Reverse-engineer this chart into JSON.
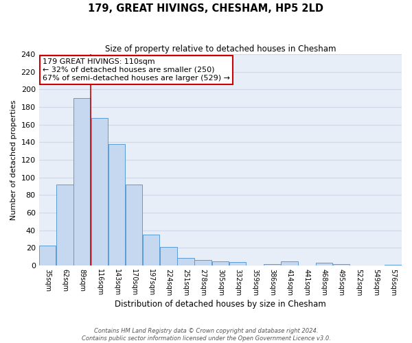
{
  "title": "179, GREAT HIVINGS, CHESHAM, HP5 2LD",
  "subtitle": "Size of property relative to detached houses in Chesham",
  "xlabel": "Distribution of detached houses by size in Chesham",
  "ylabel": "Number of detached properties",
  "bar_labels": [
    "35sqm",
    "62sqm",
    "89sqm",
    "116sqm",
    "143sqm",
    "170sqm",
    "197sqm",
    "224sqm",
    "251sqm",
    "278sqm",
    "305sqm",
    "332sqm",
    "359sqm",
    "386sqm",
    "414sqm",
    "441sqm",
    "468sqm",
    "495sqm",
    "522sqm",
    "549sqm",
    "576sqm"
  ],
  "bar_values": [
    23,
    92,
    190,
    168,
    138,
    92,
    35,
    21,
    9,
    6,
    5,
    4,
    0,
    2,
    5,
    0,
    3,
    2,
    0,
    0,
    1
  ],
  "bar_color": "#c5d8f0",
  "bar_edge_color": "#5b9bd5",
  "vline_x_index": 2,
  "vline_color": "#cc0000",
  "annotation_text": "179 GREAT HIVINGS: 110sqm\n← 32% of detached houses are smaller (250)\n67% of semi-detached houses are larger (529) →",
  "annotation_box_color": "#ffffff",
  "annotation_box_edge": "#cc0000",
  "ylim": [
    0,
    240
  ],
  "yticks": [
    0,
    20,
    40,
    60,
    80,
    100,
    120,
    140,
    160,
    180,
    200,
    220,
    240
  ],
  "background_color": "#e8eef8",
  "grid_color": "#d0d8e8",
  "footer_line1": "Contains HM Land Registry data © Crown copyright and database right 2024.",
  "footer_line2": "Contains public sector information licensed under the Open Government Licence v3.0."
}
